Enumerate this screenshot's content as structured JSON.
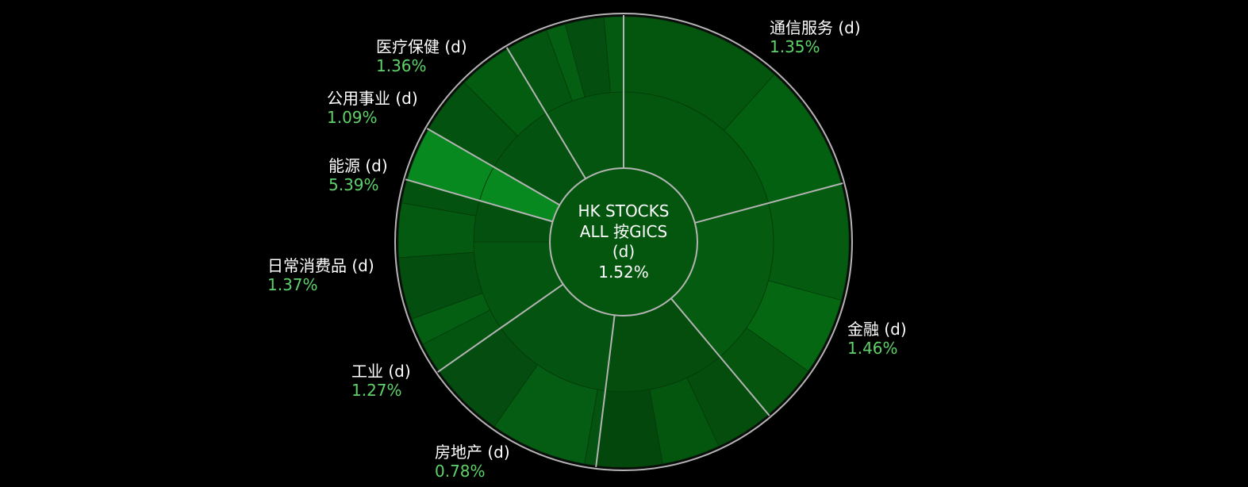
{
  "chart_data": {
    "type": "sunburst",
    "center": {
      "lines": [
        "HK STOCKS",
        "ALL 按GICS",
        "(d)"
      ],
      "value": "1.52%"
    },
    "sectors": [
      {
        "name": "通信服务 (d)",
        "value_text": "1.35%",
        "color": "#04560f"
      },
      {
        "name": "金融 (d)",
        "value_text": "1.46%",
        "color": "#055c10"
      },
      {
        "name": "房地产 (d)",
        "value_text": "0.78%",
        "color": "#044d0d"
      },
      {
        "name": "工业 (d)",
        "value_text": "1.27%",
        "color": "#045310"
      },
      {
        "name": "日常消费品 (d)",
        "value_text": "1.37%",
        "color": "#045510"
      },
      {
        "name": "能源 (d)",
        "value_text": "5.39%",
        "color": "#07891f"
      },
      {
        "name": "公用事业 (d)",
        "value_text": "1.09%",
        "color": "#04520f"
      },
      {
        "name": "医疗保健 (d)",
        "value_text": "1.36%",
        "color": "#045510"
      }
    ],
    "colors": {
      "background": "#000000",
      "label_text": "#ffffff",
      "value_text": "#5fd36a",
      "separator": "#b4b4b4"
    }
  }
}
